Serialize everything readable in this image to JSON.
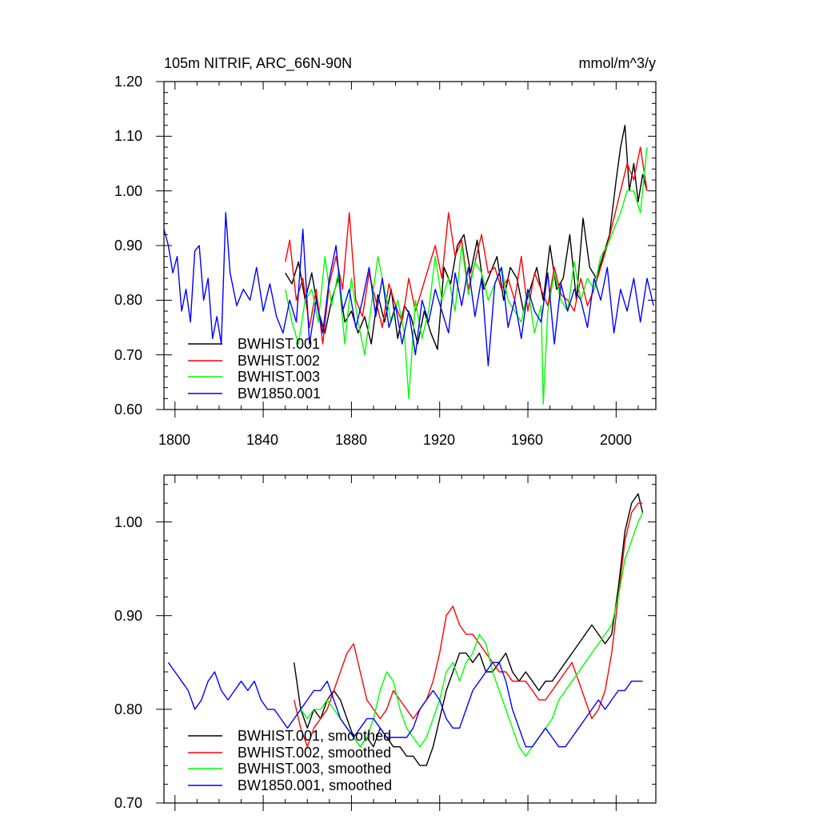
{
  "chart_data": [
    {
      "type": "line",
      "title_left": "105m NITRIF, ARC_66N-90N",
      "title_right": "mmol/m^3/y",
      "xlabel": "",
      "ylabel": "",
      "xlim": [
        1795,
        2018
      ],
      "ylim": [
        0.6,
        1.2
      ],
      "xticks": [
        1800,
        1840,
        1880,
        1920,
        1960,
        2000
      ],
      "xtick_labels": [
        "1800",
        "1840",
        "1880",
        "1920",
        "1960",
        "2000"
      ],
      "yticks": [
        0.6,
        0.7,
        0.8,
        0.9,
        1.0,
        1.1,
        1.2
      ],
      "ytick_labels": [
        "0.60",
        "0.70",
        "0.80",
        "0.90",
        "1.00",
        "1.10",
        "1.20"
      ],
      "legend_position": "bottom-left",
      "series": [
        {
          "name": "BWHIST.001",
          "color": "#000000",
          "x": [
            1850,
            1853,
            1856,
            1859,
            1862,
            1865,
            1868,
            1871,
            1874,
            1877,
            1880,
            1883,
            1886,
            1889,
            1892,
            1895,
            1898,
            1901,
            1904,
            1907,
            1910,
            1913,
            1916,
            1919,
            1922,
            1925,
            1928,
            1931,
            1934,
            1937,
            1940,
            1943,
            1946,
            1949,
            1952,
            1955,
            1958,
            1961,
            1964,
            1967,
            1970,
            1973,
            1976,
            1979,
            1982,
            1985,
            1988,
            1991,
            1994,
            1997,
            2000,
            2002,
            2004,
            2006,
            2008,
            2010,
            2012,
            2014
          ],
          "values": [
            0.85,
            0.83,
            0.87,
            0.8,
            0.85,
            0.78,
            0.74,
            0.8,
            0.84,
            0.76,
            0.78,
            0.74,
            0.77,
            0.72,
            0.81,
            0.76,
            0.82,
            0.73,
            0.79,
            0.77,
            0.72,
            0.78,
            0.74,
            0.71,
            0.86,
            0.83,
            0.9,
            0.92,
            0.85,
            0.91,
            0.82,
            0.85,
            0.88,
            0.8,
            0.86,
            0.84,
            0.78,
            0.82,
            0.86,
            0.8,
            0.9,
            0.82,
            0.84,
            0.92,
            0.8,
            0.95,
            0.86,
            0.84,
            0.88,
            0.92,
            1.02,
            1.08,
            1.12,
            1.0,
            1.05,
            0.98,
            1.03,
            1.0
          ]
        },
        {
          "name": "BWHIST.002",
          "color": "#ff0000",
          "x": [
            1850,
            1852,
            1855,
            1858,
            1861,
            1864,
            1867,
            1870,
            1873,
            1876,
            1879,
            1882,
            1885,
            1888,
            1891,
            1894,
            1897,
            1900,
            1903,
            1906,
            1909,
            1912,
            1915,
            1918,
            1921,
            1924,
            1927,
            1930,
            1933,
            1936,
            1939,
            1942,
            1945,
            1948,
            1951,
            1954,
            1957,
            1960,
            1963,
            1966,
            1969,
            1972,
            1975,
            1978,
            1981,
            1984,
            1987,
            1990,
            1993,
            1996,
            1999,
            2002,
            2005,
            2008,
            2011,
            2014
          ],
          "values": [
            0.87,
            0.91,
            0.8,
            0.84,
            0.75,
            0.82,
            0.72,
            0.83,
            0.88,
            0.82,
            0.96,
            0.8,
            0.77,
            0.85,
            0.8,
            0.75,
            0.83,
            0.79,
            0.76,
            0.84,
            0.78,
            0.82,
            0.86,
            0.9,
            0.84,
            0.96,
            0.88,
            0.91,
            0.82,
            0.87,
            0.92,
            0.85,
            0.86,
            0.82,
            0.84,
            0.8,
            0.88,
            0.78,
            0.85,
            0.82,
            0.79,
            0.86,
            0.81,
            0.8,
            0.78,
            0.84,
            0.79,
            0.82,
            0.86,
            0.9,
            0.95,
            1.0,
            1.05,
            1.02,
            1.08,
            1.0
          ]
        },
        {
          "name": "BWHIST.003",
          "color": "#00ff00",
          "x": [
            1850,
            1853,
            1856,
            1859,
            1862,
            1865,
            1868,
            1871,
            1874,
            1877,
            1880,
            1883,
            1886,
            1889,
            1892,
            1895,
            1898,
            1901,
            1904,
            1906,
            1909,
            1912,
            1915,
            1918,
            1921,
            1924,
            1927,
            1930,
            1933,
            1936,
            1939,
            1942,
            1945,
            1948,
            1951,
            1954,
            1957,
            1960,
            1963,
            1966,
            1967,
            1969,
            1972,
            1975,
            1978,
            1981,
            1984,
            1987,
            1990,
            1993,
            1996,
            1999,
            2002,
            2005,
            2008,
            2011,
            2014
          ],
          "values": [
            0.82,
            0.76,
            0.72,
            0.8,
            0.82,
            0.76,
            0.88,
            0.79,
            0.85,
            0.72,
            0.84,
            0.76,
            0.7,
            0.79,
            0.88,
            0.82,
            0.76,
            0.8,
            0.74,
            0.62,
            0.8,
            0.73,
            0.78,
            0.88,
            0.8,
            0.84,
            0.78,
            0.9,
            0.81,
            0.87,
            0.85,
            0.8,
            0.83,
            0.86,
            0.8,
            0.78,
            0.76,
            0.82,
            0.74,
            0.79,
            0.61,
            0.78,
            0.85,
            0.8,
            0.78,
            0.87,
            0.8,
            0.84,
            0.82,
            0.88,
            0.9,
            0.93,
            0.96,
            1.0,
            1.0,
            0.96,
            1.08
          ]
        },
        {
          "name": "BW1850.001",
          "color": "#0000ff",
          "x": [
            1795,
            1797,
            1799,
            1801,
            1803,
            1805,
            1807,
            1809,
            1811,
            1813,
            1815,
            1817,
            1819,
            1821,
            1823,
            1825,
            1828,
            1831,
            1834,
            1837,
            1840,
            1843,
            1846,
            1849,
            1852,
            1855,
            1858,
            1861,
            1864,
            1867,
            1870,
            1873,
            1876,
            1879,
            1882,
            1885,
            1888,
            1891,
            1894,
            1897,
            1900,
            1903,
            1906,
            1909,
            1912,
            1915,
            1918,
            1921,
            1924,
            1927,
            1930,
            1933,
            1936,
            1939,
            1942,
            1945,
            1948,
            1951,
            1954,
            1957,
            1960,
            1963,
            1966,
            1969,
            1972,
            1975,
            1978,
            1981,
            1984,
            1987,
            1990,
            1993,
            1996,
            1999,
            2002,
            2005,
            2008,
            2011,
            2014,
            2017
          ],
          "values": [
            0.93,
            0.9,
            0.85,
            0.88,
            0.78,
            0.82,
            0.76,
            0.89,
            0.9,
            0.8,
            0.84,
            0.73,
            0.77,
            0.72,
            0.96,
            0.85,
            0.79,
            0.82,
            0.8,
            0.86,
            0.78,
            0.83,
            0.77,
            0.74,
            0.8,
            0.76,
            0.93,
            0.72,
            0.8,
            0.74,
            0.84,
            0.9,
            0.78,
            0.82,
            0.75,
            0.8,
            0.86,
            0.77,
            0.84,
            0.75,
            0.79,
            0.72,
            0.78,
            0.7,
            0.8,
            0.76,
            0.82,
            0.78,
            0.74,
            0.85,
            0.79,
            0.86,
            0.77,
            0.84,
            0.68,
            0.83,
            0.86,
            0.75,
            0.8,
            0.73,
            0.82,
            0.78,
            0.76,
            0.85,
            0.72,
            0.83,
            0.78,
            0.82,
            0.8,
            0.75,
            0.84,
            0.8,
            0.86,
            0.74,
            0.82,
            0.78,
            0.84,
            0.76,
            0.84,
            0.79
          ]
        }
      ]
    },
    {
      "type": "line",
      "xlim": [
        1795,
        2018
      ],
      "ylim": [
        0.7,
        1.05
      ],
      "xticks": [
        1800,
        1840,
        1880,
        1920,
        1960,
        2000
      ],
      "yticks": [
        0.7,
        0.8,
        0.9,
        1.0
      ],
      "ytick_labels": [
        "0.70",
        "0.80",
        "0.90",
        "1.00"
      ],
      "legend_position": "bottom-left",
      "series": [
        {
          "name": "BWHIST.001, smoothed",
          "color": "#000000",
          "x": [
            1854,
            1857,
            1860,
            1863,
            1866,
            1869,
            1872,
            1875,
            1878,
            1881,
            1884,
            1887,
            1890,
            1893,
            1896,
            1899,
            1902,
            1905,
            1908,
            1911,
            1914,
            1917,
            1920,
            1923,
            1926,
            1929,
            1932,
            1935,
            1938,
            1941,
            1944,
            1947,
            1950,
            1953,
            1956,
            1959,
            1962,
            1965,
            1968,
            1971,
            1974,
            1977,
            1980,
            1983,
            1986,
            1989,
            1992,
            1995,
            1998,
            2001,
            2004,
            2007,
            2010,
            2012
          ],
          "values": [
            0.85,
            0.8,
            0.78,
            0.8,
            0.79,
            0.81,
            0.82,
            0.81,
            0.79,
            0.77,
            0.76,
            0.77,
            0.76,
            0.78,
            0.77,
            0.76,
            0.76,
            0.75,
            0.75,
            0.74,
            0.74,
            0.76,
            0.79,
            0.82,
            0.84,
            0.86,
            0.86,
            0.85,
            0.86,
            0.84,
            0.84,
            0.85,
            0.86,
            0.84,
            0.83,
            0.84,
            0.83,
            0.82,
            0.83,
            0.83,
            0.84,
            0.85,
            0.86,
            0.87,
            0.88,
            0.89,
            0.88,
            0.87,
            0.88,
            0.93,
            0.99,
            1.02,
            1.03,
            1.01
          ]
        },
        {
          "name": "BWHIST.002, smoothed",
          "color": "#ff0000",
          "x": [
            1854,
            1857,
            1860,
            1863,
            1866,
            1869,
            1872,
            1875,
            1878,
            1881,
            1884,
            1887,
            1890,
            1893,
            1896,
            1899,
            1902,
            1905,
            1908,
            1911,
            1914,
            1917,
            1920,
            1923,
            1926,
            1929,
            1932,
            1935,
            1938,
            1941,
            1944,
            1947,
            1950,
            1953,
            1956,
            1959,
            1962,
            1965,
            1968,
            1971,
            1974,
            1977,
            1980,
            1983,
            1986,
            1989,
            1992,
            1995,
            1998,
            2001,
            2004,
            2007,
            2010,
            2012
          ],
          "values": [
            0.81,
            0.78,
            0.76,
            0.78,
            0.79,
            0.8,
            0.82,
            0.84,
            0.86,
            0.87,
            0.84,
            0.81,
            0.8,
            0.79,
            0.8,
            0.82,
            0.81,
            0.8,
            0.79,
            0.8,
            0.81,
            0.83,
            0.86,
            0.9,
            0.91,
            0.89,
            0.88,
            0.88,
            0.87,
            0.86,
            0.85,
            0.84,
            0.84,
            0.83,
            0.83,
            0.83,
            0.82,
            0.81,
            0.81,
            0.82,
            0.83,
            0.84,
            0.85,
            0.83,
            0.81,
            0.79,
            0.8,
            0.82,
            0.86,
            0.92,
            0.98,
            1.01,
            1.02,
            1.02
          ]
        },
        {
          "name": "BWHIST.003, smoothed",
          "color": "#00ff00",
          "x": [
            1854,
            1857,
            1860,
            1863,
            1866,
            1869,
            1872,
            1875,
            1878,
            1881,
            1884,
            1887,
            1890,
            1893,
            1896,
            1899,
            1902,
            1905,
            1908,
            1911,
            1914,
            1917,
            1920,
            1923,
            1926,
            1929,
            1932,
            1935,
            1938,
            1941,
            1944,
            1947,
            1950,
            1953,
            1956,
            1959,
            1962,
            1965,
            1968,
            1971,
            1974,
            1977,
            1980,
            1983,
            1986,
            1989,
            1992,
            1995,
            1998,
            2001,
            2004,
            2007,
            2010,
            2012
          ],
          "values": [
            0.79,
            0.8,
            0.79,
            0.8,
            0.8,
            0.81,
            0.8,
            0.79,
            0.78,
            0.77,
            0.76,
            0.77,
            0.79,
            0.82,
            0.84,
            0.83,
            0.8,
            0.78,
            0.77,
            0.76,
            0.77,
            0.79,
            0.81,
            0.84,
            0.85,
            0.83,
            0.85,
            0.86,
            0.88,
            0.87,
            0.84,
            0.82,
            0.8,
            0.78,
            0.76,
            0.75,
            0.76,
            0.77,
            0.78,
            0.79,
            0.81,
            0.82,
            0.83,
            0.84,
            0.85,
            0.86,
            0.87,
            0.88,
            0.89,
            0.92,
            0.96,
            0.98,
            1.0,
            1.01
          ]
        },
        {
          "name": "BW1850.001, smoothed",
          "color": "#0000ff",
          "x": [
            1797,
            1800,
            1803,
            1806,
            1809,
            1812,
            1815,
            1818,
            1821,
            1824,
            1827,
            1830,
            1833,
            1836,
            1839,
            1842,
            1845,
            1848,
            1851,
            1854,
            1857,
            1860,
            1863,
            1866,
            1869,
            1872,
            1875,
            1878,
            1881,
            1884,
            1887,
            1890,
            1893,
            1896,
            1899,
            1902,
            1905,
            1908,
            1911,
            1914,
            1917,
            1920,
            1923,
            1926,
            1929,
            1932,
            1935,
            1938,
            1941,
            1944,
            1947,
            1950,
            1953,
            1956,
            1959,
            1962,
            1965,
            1968,
            1971,
            1974,
            1977,
            1980,
            1983,
            1986,
            1989,
            1992,
            1995,
            1998,
            2001,
            2004,
            2007,
            2010,
            2012
          ],
          "values": [
            0.85,
            0.84,
            0.83,
            0.82,
            0.8,
            0.81,
            0.83,
            0.84,
            0.82,
            0.81,
            0.82,
            0.83,
            0.82,
            0.83,
            0.81,
            0.8,
            0.8,
            0.79,
            0.78,
            0.79,
            0.8,
            0.81,
            0.82,
            0.82,
            0.83,
            0.81,
            0.79,
            0.78,
            0.77,
            0.78,
            0.79,
            0.79,
            0.78,
            0.77,
            0.77,
            0.77,
            0.77,
            0.78,
            0.8,
            0.81,
            0.82,
            0.81,
            0.79,
            0.78,
            0.78,
            0.8,
            0.82,
            0.83,
            0.84,
            0.85,
            0.85,
            0.83,
            0.8,
            0.78,
            0.76,
            0.76,
            0.77,
            0.78,
            0.77,
            0.76,
            0.76,
            0.77,
            0.78,
            0.79,
            0.8,
            0.81,
            0.8,
            0.81,
            0.82,
            0.82,
            0.83,
            0.83,
            0.83
          ]
        }
      ]
    }
  ]
}
